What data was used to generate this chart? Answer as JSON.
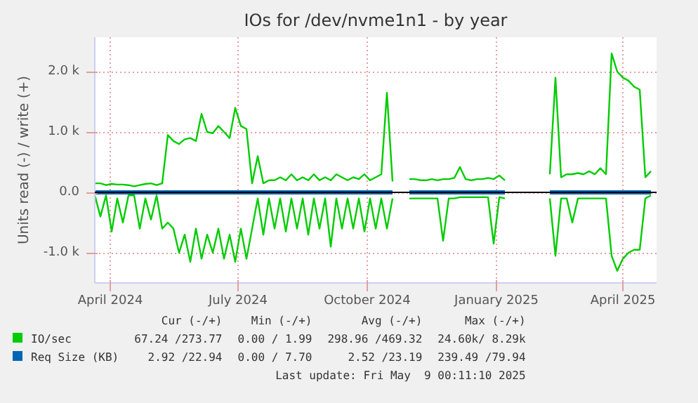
{
  "chart_data": {
    "type": "line",
    "title": "IOs for /dev/nvme1n1 - by year",
    "ylabel": "Units read (-) / write (+)",
    "x": [
      "2024-04-04",
      "2024-04-08",
      "2024-04-12",
      "2024-04-16",
      "2024-04-20",
      "2024-04-24",
      "2024-04-28",
      "2024-05-02",
      "2024-05-06",
      "2024-05-10",
      "2024-05-14",
      "2024-05-18",
      "2024-05-22",
      "2024-05-26",
      "2024-05-30",
      "2024-06-03",
      "2024-06-07",
      "2024-06-11",
      "2024-06-15",
      "2024-06-19",
      "2024-06-23",
      "2024-06-27",
      "2024-07-01",
      "2024-07-05",
      "2024-07-09",
      "2024-07-13",
      "2024-07-17",
      "2024-07-21",
      "2024-07-25",
      "2024-07-29",
      "2024-08-02",
      "2024-08-06",
      "2024-08-10",
      "2024-08-14",
      "2024-08-18",
      "2024-08-22",
      "2024-08-26",
      "2024-08-30",
      "2024-09-03",
      "2024-09-07",
      "2024-09-11",
      "2024-09-15",
      "2024-09-19",
      "2024-09-23",
      "2024-09-27",
      "2024-10-01",
      "2024-10-05",
      "2024-10-09",
      "2024-10-13",
      "2024-10-17",
      "2024-10-21",
      "2024-10-25",
      "2024-10-29",
      "2024-11-02",
      "2024-11-06",
      "2024-11-10",
      "2024-11-14",
      "2024-11-18",
      "2024-11-22",
      "2024-11-26",
      "2024-11-30",
      "2024-12-04",
      "2024-12-08",
      "2024-12-12",
      "2024-12-16",
      "2024-12-20",
      "2024-12-24",
      "2024-12-28",
      "2025-01-01",
      "2025-01-05",
      "2025-01-09",
      "2025-01-13",
      "2025-01-17",
      "2025-01-21",
      "2025-01-25",
      "2025-01-29",
      "2025-02-02",
      "2025-02-06",
      "2025-02-10",
      "2025-02-14",
      "2025-02-18",
      "2025-02-22",
      "2025-02-26",
      "2025-03-02",
      "2025-03-06",
      "2025-03-10",
      "2025-03-14",
      "2025-03-18",
      "2025-03-22",
      "2025-03-26",
      "2025-03-30",
      "2025-04-03",
      "2025-04-07",
      "2025-04-11",
      "2025-04-15",
      "2025-04-19",
      "2025-04-23",
      "2025-04-27",
      "2025-05-01",
      "2025-05-05"
    ],
    "series": [
      {
        "name": "IO/sec",
        "color": "#00cc00",
        "values": [
          150,
          150,
          120,
          140,
          130,
          130,
          120,
          100,
          120,
          140,
          150,
          120,
          150,
          950,
          850,
          800,
          880,
          900,
          850,
          1300,
          1000,
          980,
          1100,
          1000,
          900,
          1400,
          1100,
          1050,
          150,
          600,
          150,
          200,
          200,
          250,
          200,
          300,
          200,
          250,
          200,
          300,
          200,
          250,
          200,
          300,
          250,
          200,
          250,
          220,
          300,
          200,
          250,
          300,
          1650,
          180,
          null,
          null,
          220,
          220,
          200,
          200,
          220,
          200,
          220,
          220,
          240,
          420,
          220,
          200,
          220,
          220,
          240,
          220,
          280,
          200,
          null,
          null,
          null,
          null,
          null,
          null,
          null,
          300,
          1900,
          250,
          300,
          300,
          320,
          300,
          350,
          300,
          400,
          300,
          2300,
          2000,
          1900,
          1850,
          1750,
          1700,
          250,
          350
        ]
      },
      {
        "color": "#00cc00",
        "values": [
          -50,
          -400,
          -50,
          -650,
          -100,
          -500,
          -50,
          -50,
          -600,
          -100,
          -450,
          -50,
          -600,
          -500,
          -600,
          -1000,
          -700,
          -1150,
          -600,
          -1100,
          -700,
          -1000,
          -600,
          -1100,
          -700,
          -1150,
          -600,
          -1100,
          -600,
          -100,
          -700,
          -100,
          -600,
          -100,
          -650,
          -100,
          -600,
          -100,
          -700,
          -100,
          -600,
          -100,
          -900,
          -100,
          -600,
          -100,
          -600,
          -100,
          -650,
          -100,
          -600,
          -100,
          -600,
          -100,
          null,
          null,
          -100,
          -100,
          -100,
          -100,
          -100,
          -100,
          -800,
          -100,
          -100,
          -80,
          -80,
          -80,
          -80,
          -80,
          -80,
          -850,
          -80,
          -100,
          null,
          null,
          null,
          null,
          null,
          null,
          null,
          -100,
          -1050,
          -100,
          -100,
          -500,
          -100,
          -100,
          -100,
          -100,
          -100,
          -100,
          -1050,
          -1300,
          -1100,
          -1000,
          -950,
          -950,
          -100,
          -50
        ]
      },
      {
        "name": "Req Size (KB)",
        "color": "#0066b3",
        "values": [
          0,
          0,
          0,
          0,
          0,
          0,
          0,
          0,
          0,
          0,
          0,
          0,
          0,
          0,
          0,
          0,
          0,
          0,
          0,
          0,
          0,
          0,
          0,
          0,
          0,
          0,
          0,
          0,
          0,
          0,
          0,
          0,
          0,
          0,
          0,
          0,
          0,
          0,
          0,
          0,
          0,
          0,
          0,
          0,
          0,
          0,
          0,
          0,
          0,
          0,
          0,
          0,
          0,
          0,
          null,
          null,
          0,
          0,
          0,
          0,
          0,
          0,
          0,
          0,
          0,
          0,
          0,
          0,
          0,
          0,
          0,
          0,
          0,
          0,
          null,
          null,
          null,
          null,
          null,
          null,
          null,
          0,
          0,
          0,
          0,
          0,
          0,
          0,
          0,
          0,
          0,
          0,
          0,
          0,
          0,
          0,
          0,
          0,
          0,
          0
        ]
      }
    ],
    "xlim": [
      "2024-04-04",
      "2025-05-09"
    ],
    "xticks": [
      {
        "value": "2024-04-15",
        "label": "April 2024"
      },
      {
        "value": "2024-07-15",
        "label": "July 2024"
      },
      {
        "value": "2024-10-15",
        "label": "October 2024"
      },
      {
        "value": "2025-01-15",
        "label": "January 2025"
      },
      {
        "value": "2025-04-15",
        "label": "April 2025"
      }
    ],
    "ylim": [
      -1500,
      2570
    ],
    "yticks": [
      {
        "value": -1000,
        "label": "-1.0 k"
      },
      {
        "value": 0,
        "label": "0.0"
      },
      {
        "value": 1000,
        "label": "1.0 k"
      },
      {
        "value": 2000,
        "label": "2.0 k"
      }
    ],
    "grid": true,
    "legend": "bottom",
    "line_style": "solid",
    "annotations": [
      "Cur (-/+)",
      "Min (-/+)",
      "Avg (-/+)",
      "Max (-/+)",
      "67.24 /273.77",
      "0.00 / 1.99",
      "298.96 /469.32",
      "24.60k/ 8.29k",
      "2.92 /22.94",
      "0.00 / 7.70",
      "2.52 /23.19",
      "239.49 /79.94",
      "Last update: Fri May  9 00:11:10 2025"
    ]
  }
}
